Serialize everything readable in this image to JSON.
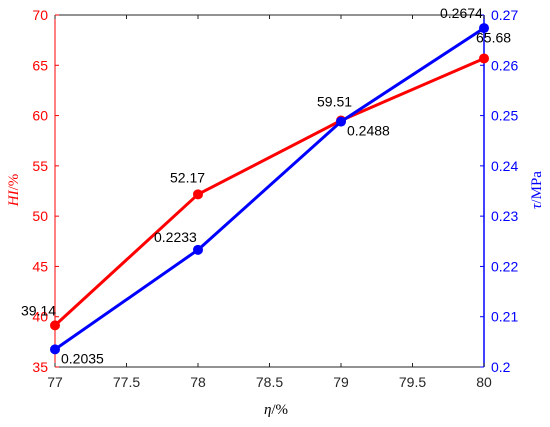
{
  "chart_data": {
    "type": "line",
    "title": "",
    "x": [
      77,
      78,
      79,
      80
    ],
    "xlim": [
      77,
      80
    ],
    "xticks": [
      "77",
      "77.5",
      "78",
      "78.5",
      "79",
      "79.5",
      "80"
    ],
    "xticks_values": [
      77,
      77.5,
      78,
      78.5,
      79,
      79.5,
      80
    ],
    "xlabel": {
      "sym": "η",
      "unit": "/%"
    },
    "left_axis": {
      "label": {
        "sym": "HI",
        "unit": "/%"
      },
      "ylim": [
        35,
        70
      ],
      "ticks": [
        "35",
        "40",
        "45",
        "50",
        "55",
        "60",
        "65",
        "70"
      ],
      "ticks_values": [
        35,
        40,
        45,
        50,
        55,
        60,
        65,
        70
      ],
      "color": "#ff0000"
    },
    "right_axis": {
      "label": {
        "sym": "τ",
        "unit": "/MPa"
      },
      "ylim": [
        0.2,
        0.27
      ],
      "ticks": [
        "0.2",
        "0.21",
        "0.22",
        "0.23",
        "0.24",
        "0.25",
        "0.26",
        "0.27"
      ],
      "ticks_values": [
        0.2,
        0.21,
        0.22,
        0.23,
        0.24,
        0.25,
        0.26,
        0.27
      ],
      "color": "#0000ff"
    },
    "series": [
      {
        "axis": "left",
        "color": "#ff0000",
        "values": [
          39.14,
          52.17,
          59.51,
          65.68
        ],
        "labels": [
          "39.14",
          "52.17",
          "59.51",
          "65.68"
        ]
      },
      {
        "axis": "right",
        "color": "#0000ff",
        "values": [
          0.2035,
          0.2233,
          0.2488,
          0.2674
        ],
        "labels": [
          "0.2035",
          "0.2233",
          "0.2488",
          "0.2674"
        ]
      }
    ],
    "grid": false,
    "legend": "none"
  }
}
